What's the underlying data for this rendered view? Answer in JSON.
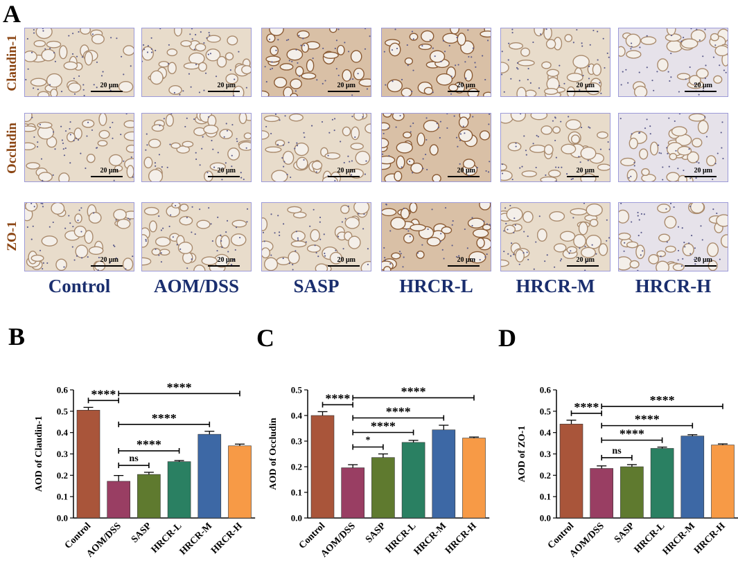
{
  "panel_a": {
    "letter": "A",
    "rows": [
      "Claudin-1",
      "Occludin",
      "ZO-1"
    ],
    "groups": [
      "Control",
      "AOM/DSS",
      "SASP",
      "HRCR-L",
      "HRCR-M",
      "HRCR-H"
    ],
    "scale_label": "20 μm"
  },
  "chart_data": [
    {
      "panel": "B",
      "type": "bar",
      "categories": [
        "Control",
        "AOM/DSS",
        "SASP",
        "HRCR-L",
        "HRCR-M",
        "HRCR-H"
      ],
      "values": [
        0.505,
        0.172,
        0.204,
        0.264,
        0.392,
        0.338
      ],
      "errors": [
        0.013,
        0.027,
        0.01,
        0.005,
        0.014,
        0.008
      ],
      "colors": [
        "#a9553a",
        "#993e63",
        "#5f7a2f",
        "#2a8062",
        "#3d68a5",
        "#f79a46"
      ],
      "ylabel": "AOD of Claudin-1",
      "ylim": [
        0,
        0.6
      ],
      "yticks": [
        "0.0",
        "0.1",
        "0.2",
        "0.3",
        "0.4",
        "0.5",
        "0.6"
      ],
      "comparisons": [
        {
          "from": 0,
          "to": 1,
          "label": "****"
        },
        {
          "from": 1,
          "to": 2,
          "label": "ns"
        },
        {
          "from": 1,
          "to": 3,
          "label": "****"
        },
        {
          "from": 1,
          "to": 4,
          "label": "****"
        },
        {
          "from": 1,
          "to": 5,
          "label": "****"
        }
      ]
    },
    {
      "panel": "C",
      "type": "bar",
      "categories": [
        "Control",
        "AOM/DSS",
        "SASP",
        "HRCR-L",
        "HRCR-M",
        "HRCR-H"
      ],
      "values": [
        0.4,
        0.196,
        0.236,
        0.295,
        0.344,
        0.312
      ],
      "errors": [
        0.015,
        0.012,
        0.014,
        0.008,
        0.018,
        0.004
      ],
      "colors": [
        "#a9553a",
        "#993e63",
        "#5f7a2f",
        "#2a8062",
        "#3d68a5",
        "#f79a46"
      ],
      "ylabel": "AOD of Occludin",
      "ylim": [
        0,
        0.5
      ],
      "yticks": [
        "0.0",
        "0.1",
        "0.2",
        "0.3",
        "0.4",
        "0.5"
      ],
      "comparisons": [
        {
          "from": 0,
          "to": 1,
          "label": "****"
        },
        {
          "from": 1,
          "to": 2,
          "label": "*"
        },
        {
          "from": 1,
          "to": 3,
          "label": "****"
        },
        {
          "from": 1,
          "to": 4,
          "label": "****"
        },
        {
          "from": 1,
          "to": 5,
          "label": "****"
        }
      ]
    },
    {
      "panel": "D",
      "type": "bar",
      "categories": [
        "Control",
        "AOM/DSS",
        "SASP",
        "HRCR-L",
        "HRCR-M",
        "HRCR-H"
      ],
      "values": [
        0.44,
        0.232,
        0.24,
        0.326,
        0.384,
        0.342
      ],
      "errors": [
        0.018,
        0.012,
        0.01,
        0.006,
        0.006,
        0.005
      ],
      "colors": [
        "#a9553a",
        "#993e63",
        "#5f7a2f",
        "#2a8062",
        "#3d68a5",
        "#f79a46"
      ],
      "ylabel": "AOD of ZO-1",
      "ylim": [
        0,
        0.6
      ],
      "yticks": [
        "0.0",
        "0.1",
        "0.2",
        "0.3",
        "0.4",
        "0.5",
        "0.6"
      ],
      "comparisons": [
        {
          "from": 0,
          "to": 1,
          "label": "****"
        },
        {
          "from": 1,
          "to": 2,
          "label": "ns"
        },
        {
          "from": 1,
          "to": 3,
          "label": "****"
        },
        {
          "from": 1,
          "to": 4,
          "label": "****"
        },
        {
          "from": 1,
          "to": 5,
          "label": "****"
        }
      ]
    }
  ]
}
